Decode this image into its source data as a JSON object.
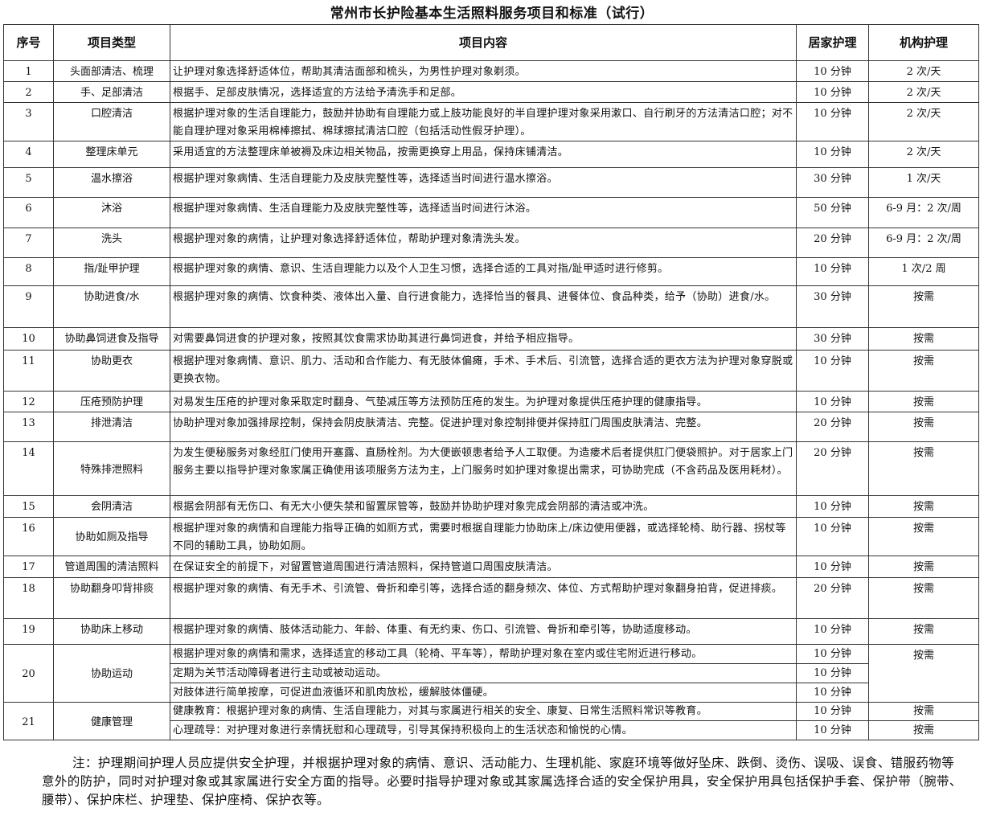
{
  "title": "常州市长护险基本生活照料服务项目和标准（试行）",
  "headers": [
    "序号",
    "项目类型",
    "项目内容",
    "居家护理",
    "机构护理"
  ],
  "rows": [
    {
      "no": "1",
      "type": "头面部清洁、梳理",
      "items": [
        {
          "content": "让护理对象选择舒适体位，帮助其清洁面部和梳头，为男性护理对象剃须。",
          "home": "10 分钟",
          "inst": "2 次/天"
        }
      ]
    },
    {
      "no": "2",
      "type": "手、足部清洁",
      "items": [
        {
          "content": "根据手、足部皮肤情况，选择适宜的方法给予清洗手和足部。",
          "home": "10 分钟",
          "inst": "2 次/天"
        }
      ]
    },
    {
      "no": "3",
      "type": "口腔清洁",
      "items": [
        {
          "content": "根据护理对象的生活自理能力，鼓励并协助有自理能力或上肢功能良好的半自理护理对象采用漱口、自行刷牙的方法清洁口腔；对不能自理护理对象采用棉棒擦拭、棉球擦拭清洁口腔（包括活动性假牙护理）。",
          "home": "10 分钟",
          "inst": "2 次/天"
        }
      ]
    },
    {
      "no": "4",
      "type": "整理床单元",
      "items": [
        {
          "content": "采用适宜的方法整理床单被褥及床边相关物品，按需更换穿上用品，保持床铺清洁。",
          "home": "10 分钟",
          "inst": "2 次/天"
        }
      ]
    },
    {
      "no": "5",
      "type": "温水擦浴",
      "items": [
        {
          "content": "根据护理对象病情、生活自理能力及皮肤完整性等，选择适当时间进行温水擦浴。",
          "home": "30 分钟",
          "inst": "1 次/天"
        }
      ]
    },
    {
      "no": "6",
      "type": "沐浴",
      "items": [
        {
          "content": "根据护理对象病情、生活自理能力及皮肤完整性等，选择适当时间进行沐浴。",
          "home": "50 分钟",
          "inst": "6-9 月：2 次/周"
        }
      ]
    },
    {
      "no": "7",
      "type": "洗头",
      "items": [
        {
          "content": "根据护理对象的病情，让护理对象选择舒适体位，帮助护理对象清洗头发。",
          "home": "20 分钟",
          "inst": "6-9 月：2 次/周"
        }
      ]
    },
    {
      "no": "8",
      "type": "指/趾甲护理",
      "items": [
        {
          "content": "根据护理对象的病情、意识、生活自理能力以及个人卫生习惯，选择合适的工具对指/趾甲适时进行修剪。",
          "home": "10 分钟",
          "inst": "1 次/2 周"
        }
      ]
    },
    {
      "no": "9",
      "type": "协助进食/水",
      "items": [
        {
          "content": "根据护理对象的病情、饮食种类、液体出入量、自行进食能力，选择恰当的餐具、进餐体位、食品种类，给予（协助）进食/水。",
          "home": "30 分钟",
          "inst": "按需"
        }
      ]
    },
    {
      "no": "10",
      "type": "协助鼻饲进食及指导",
      "items": [
        {
          "content": "对需要鼻饲进食的护理对象，按照其饮食需求协助其进行鼻饲进食，并给予相应指导。",
          "home": "30 分钟",
          "inst": "按需"
        }
      ]
    },
    {
      "no": "11",
      "type": "协助更衣",
      "items": [
        {
          "content": "根据护理对象病情、意识、肌力、活动和合作能力、有无肢体偏瘫，手术、手术后、引流管，选择合适的更衣方法为护理对象穿脱或更换衣物。",
          "home": "10 分钟",
          "inst": "按需"
        }
      ]
    },
    {
      "no": "12",
      "type": "压疮预防护理",
      "items": [
        {
          "content": "对易发生压疮的护理对象采取定时翻身、气垫减压等方法预防压疮的发生。为护理对象提供压疮护理的健康指导。",
          "home": "10 分钟",
          "inst": "按需"
        }
      ]
    },
    {
      "no": "13",
      "type": "排泄清洁",
      "items": [
        {
          "content": "协助护理对象加强排尿控制，保持会阴皮肤清洁、完整。促进护理对象控制排便并保持肛门周围皮肤清洁、完整。",
          "home": "20 分钟",
          "inst": "按需"
        }
      ]
    },
    {
      "no": "14",
      "type": "特殊排泄照料",
      "items": [
        {
          "content": "为发生便秘服务对象经肛门使用开塞露、直肠栓剂。为大便嵌顿患者给予人工取便。为造瘘术后者提供肛门便袋照护。对于居家上门服务主要以指导护理对象家属正确使用该项服务方法为主，上门服务时如护理对象提出需求，可协助完成（不含药品及医用耗材）。",
          "home": "20 分钟",
          "inst": "按需"
        }
      ]
    },
    {
      "no": "15",
      "type": "会阴清洁",
      "items": [
        {
          "content": "根据会阴部有无伤口、有无大小便失禁和留置尿管等，鼓励并协助护理对象完成会阴部的清洁或冲洗。",
          "home": "10 分钟",
          "inst": "按需"
        }
      ]
    },
    {
      "no": "16",
      "type": "协助如厕及指导",
      "items": [
        {
          "content": "根据护理对象的病情和自理能力指导正确的如厕方式，需要时根据自理能力协助床上/床边使用便器，或选择轮椅、助行器、拐杖等不同的辅助工具，协助如厕。",
          "home": "10 分钟",
          "inst": "按需"
        }
      ]
    },
    {
      "no": "17",
      "type": "管道周围的清洁照料",
      "items": [
        {
          "content": "在保证安全的前提下，对留置管道周围进行清洁照料，保持管道口周围皮肤清洁。",
          "home": "10 分钟",
          "inst": "按需"
        }
      ]
    },
    {
      "no": "18",
      "type": "协助翻身叩背排痰",
      "items": [
        {
          "content": "根据护理对象的病情、有无手术、引流管、骨折和牵引等，选择合适的翻身频次、体位、方式帮助护理对象翻身拍背，促进排痰。",
          "home": "20 分钟",
          "inst": "按需"
        }
      ]
    },
    {
      "no": "19",
      "type": "协助床上移动",
      "items": [
        {
          "content": "根据护理对象的病情、肢体活动能力、年龄、体重、有无约束、伤口、引流管、骨折和牵引等，协助适度移动。",
          "home": "10 分钟",
          "inst": "按需"
        }
      ]
    },
    {
      "no": "20",
      "type": "协助运动",
      "merged_inst": "按需",
      "items": [
        {
          "content": "根据护理对象的病情和需求，选择适宜的移动工具（轮椅、平车等），帮助护理对象在室内或住宅附近进行移动。",
          "home": "10 分钟"
        },
        {
          "content": "定期为关节活动障碍者进行主动或被动运动。",
          "home": "10 分钟"
        },
        {
          "content": "对肢体进行简单按摩，可促进血液循环和肌肉放松，缓解肢体僵硬。",
          "home": "10 分钟"
        }
      ]
    },
    {
      "no": "21",
      "type": "健康管理",
      "items": [
        {
          "content": "健康教育：根据护理对象的病情、生活自理能力，对其与家属进行相关的安全、康复、日常生活照料常识等教育。",
          "home": "10 分钟",
          "inst": "按需"
        },
        {
          "content": "心理疏导：对护理对象进行亲情抚慰和心理疏导，引导其保持积极向上的生活状态和愉悦的心情。",
          "home": "10 分钟",
          "inst": "按需"
        }
      ]
    }
  ],
  "note": "注：护理期间护理人员应提供安全护理，并根据护理对象的病情、意识、活动能力、生理机能、家庭环境等做好坠床、跌倒、烫伤、误吸、误食、错服药物等意外的防护，同时对护理对象或其家属进行安全方面的指导。必要时指导护理对象或其家属选择合适的安全保护用具，安全保护用具包括保护手套、保护带（腕带、腰带）、保护床栏、护理垫、保护座椅、保护衣等。"
}
